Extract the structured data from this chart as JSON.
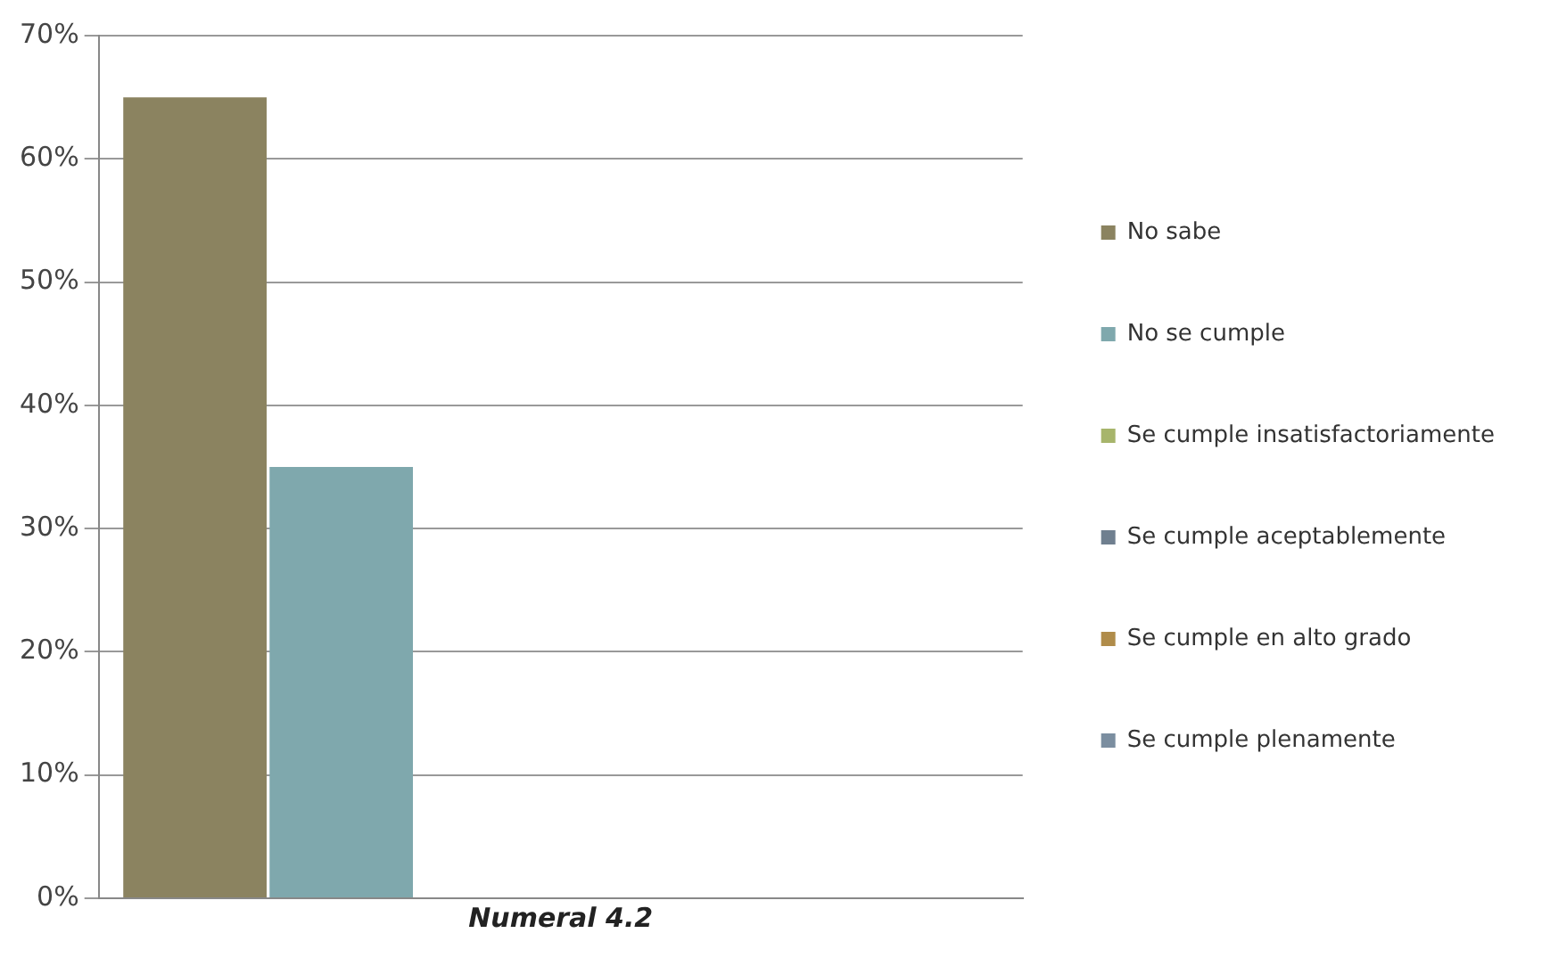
{
  "chart_data": {
    "type": "bar",
    "categories": [
      "Numeral 4.2"
    ],
    "series": [
      {
        "name": "No sabe",
        "color": "#8b8360",
        "values": [
          65
        ]
      },
      {
        "name": "No se cumple",
        "color": "#7fa8ad",
        "values": [
          35
        ]
      },
      {
        "name": "Se cumple insatisfactoriamente",
        "color": "#a7b56b",
        "values": [
          0
        ]
      },
      {
        "name": "Se cumple aceptablemente",
        "color": "#6f7f8f",
        "values": [
          0
        ]
      },
      {
        "name": "Se cumple en alto grado",
        "color": "#b08c4a",
        "values": [
          0
        ]
      },
      {
        "name": "Se cumple plenamente",
        "color": "#7b8ea0",
        "values": [
          0
        ]
      }
    ],
    "ylim": [
      0,
      70
    ],
    "yticks": [
      {
        "value": 0,
        "label": "0%"
      },
      {
        "value": 10,
        "label": "10%"
      },
      {
        "value": 20,
        "label": "20%"
      },
      {
        "value": 30,
        "label": "30%"
      },
      {
        "value": 40,
        "label": "40%"
      },
      {
        "value": 50,
        "label": "50%"
      },
      {
        "value": 60,
        "label": "60%"
      },
      {
        "value": 70,
        "label": "70%"
      }
    ],
    "grid": "y",
    "legend": "right"
  }
}
